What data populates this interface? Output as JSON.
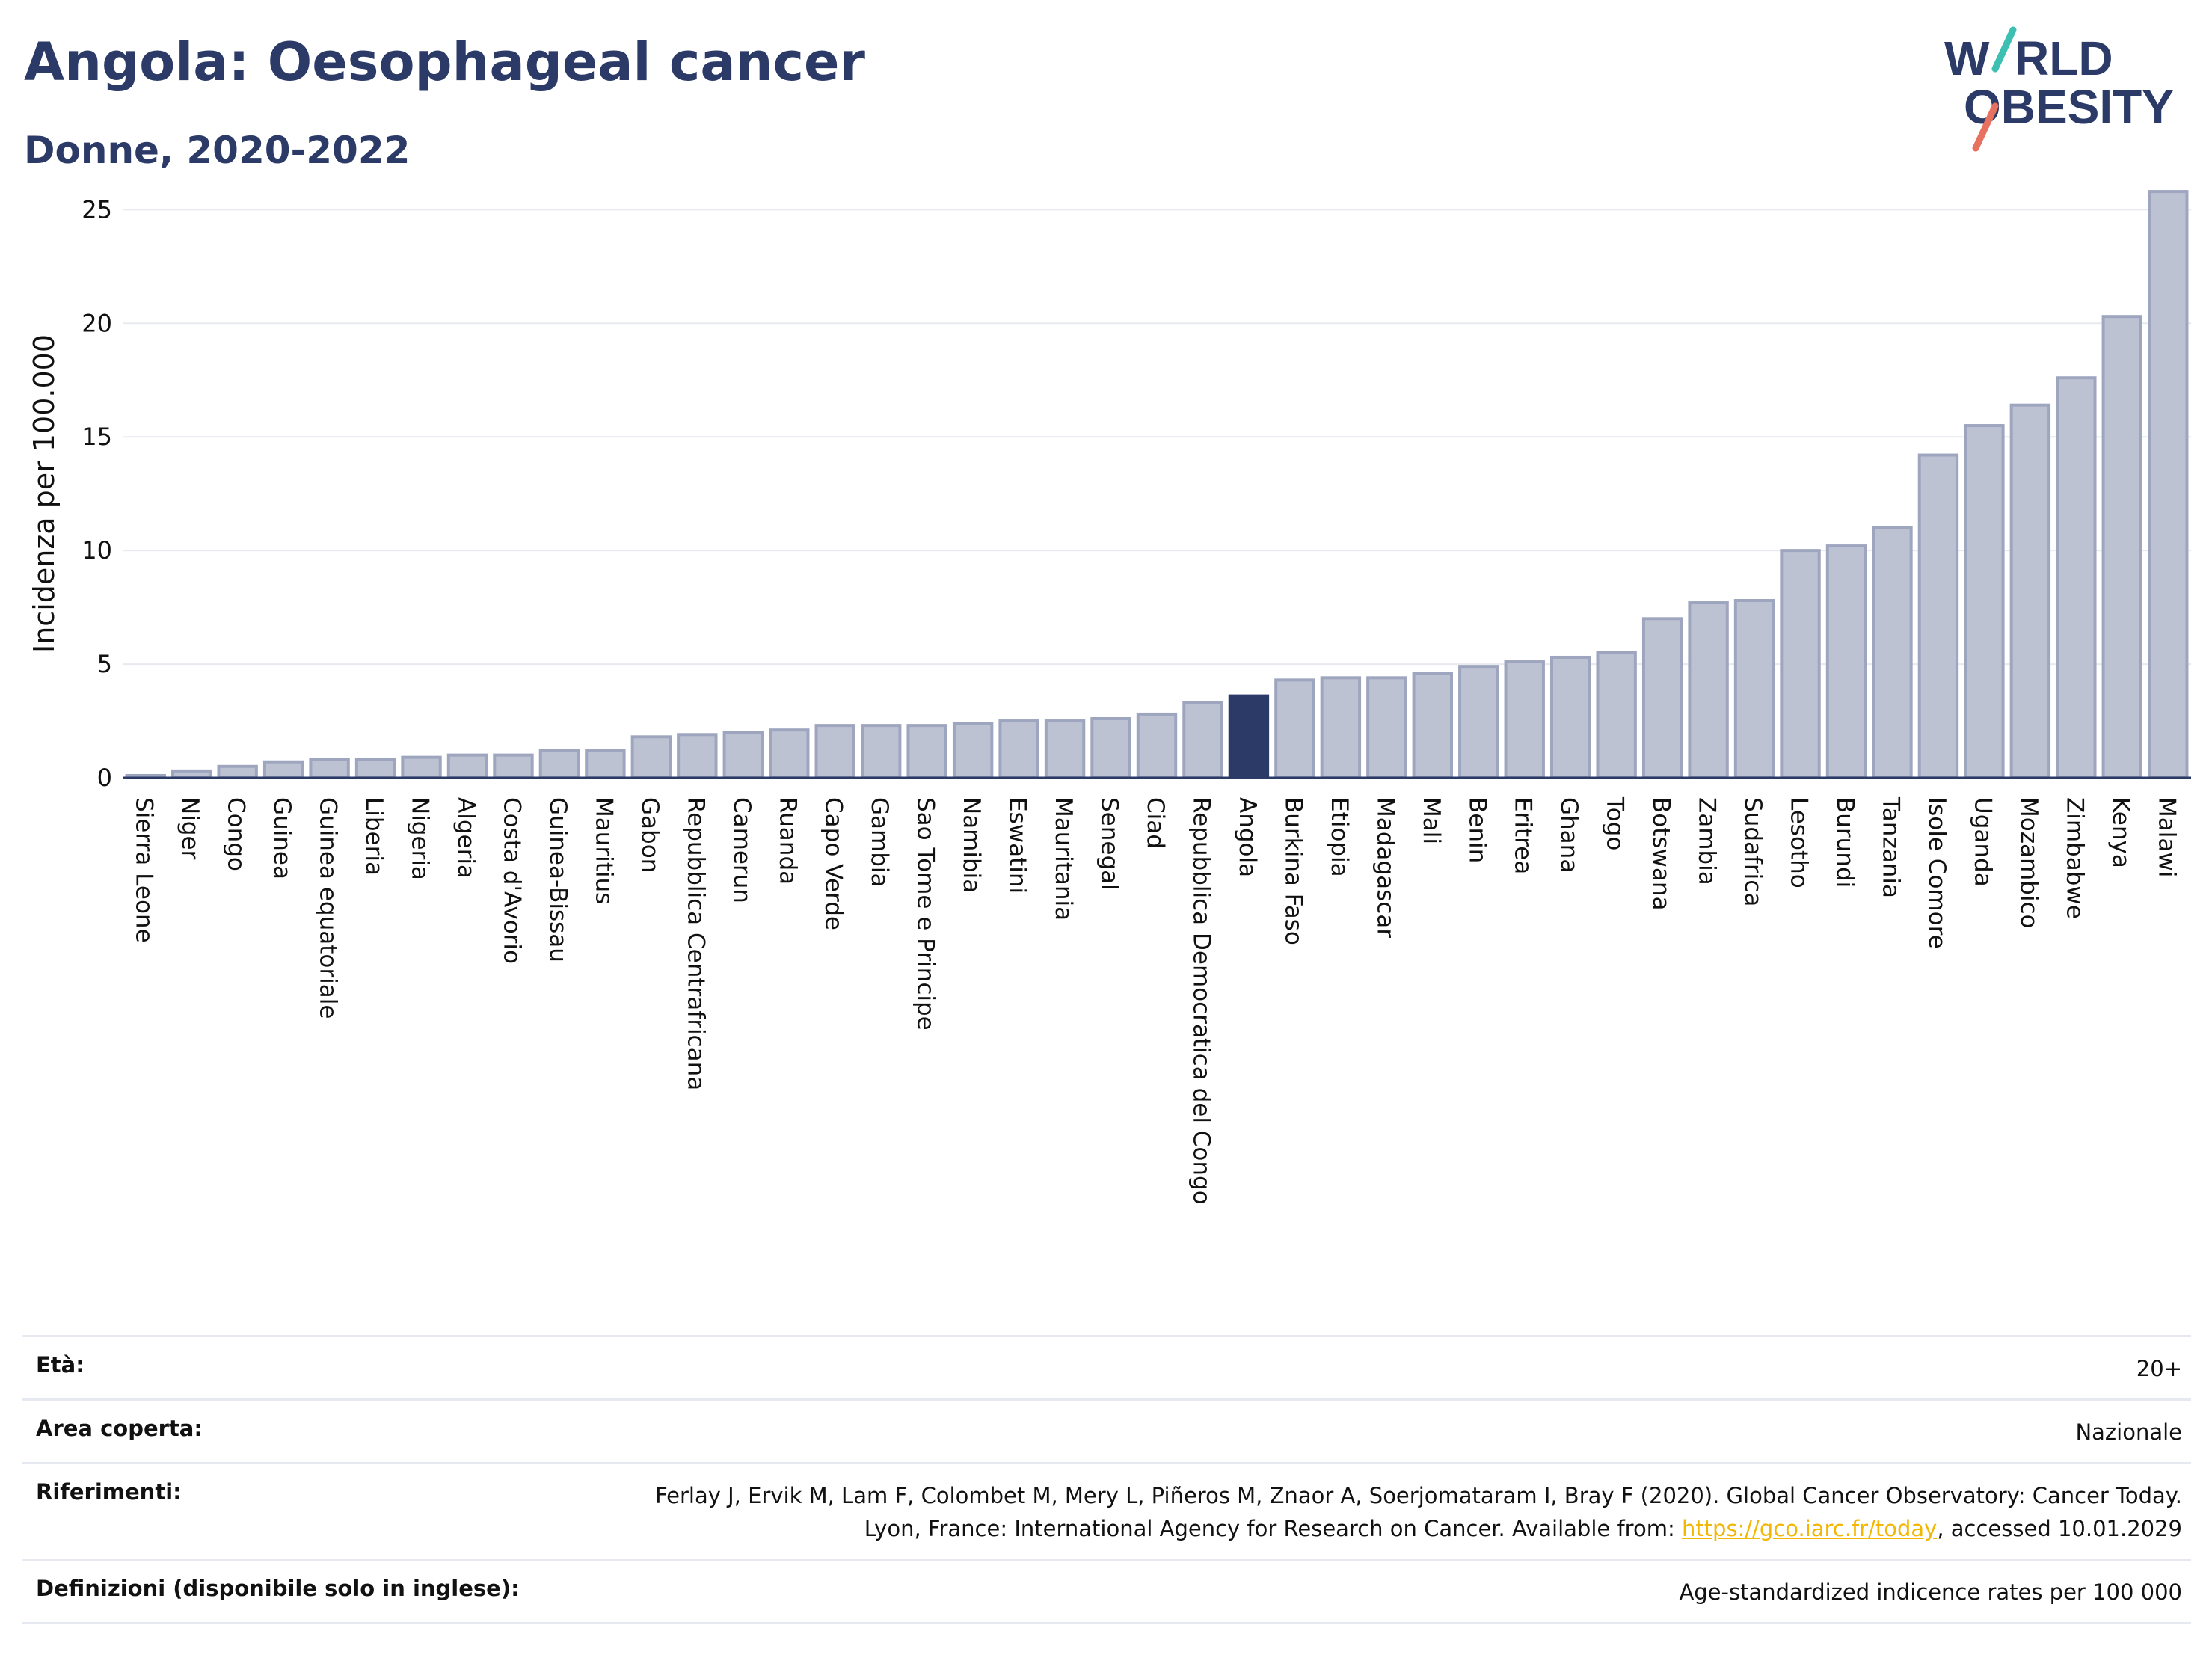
{
  "header": {
    "title": "Angola: Oesophageal cancer",
    "subtitle": "Donne, 2020-2022",
    "logo_text": [
      "W",
      "RLD",
      "OBESITY"
    ]
  },
  "colors": {
    "title": "#2b3a67",
    "bar": "#bdc2d3",
    "bar_edge": "#9ea6bf",
    "highlight": "#2b3a67",
    "logo_teal": "#3dbfb2",
    "logo_red": "#e8705e",
    "link": "#f2b705"
  },
  "chart_data": {
    "type": "bar",
    "ylabel": "Incidenza per 100.000",
    "xlabel": "",
    "ylim": [
      0,
      26
    ],
    "yticks": [
      0,
      5,
      10,
      15,
      20,
      25
    ],
    "grid": true,
    "highlight": "Angola",
    "categories": [
      "Sierra Leone",
      "Niger",
      "Congo",
      "Guinea",
      "Guinea equatoriale",
      "Liberia",
      "Nigeria",
      "Algeria",
      "Costa d'Avorio",
      "Guinea-Bissau",
      "Mauritius",
      "Gabon",
      "Repubblica Centrafricana",
      "Camerun",
      "Ruanda",
      "Capo Verde",
      "Gambia",
      "Sao Tome e Principe",
      "Namibia",
      "Eswatini",
      "Mauritania",
      "Senegal",
      "Ciad",
      "Repubblica Democratica del Congo",
      "Angola",
      "Burkina Faso",
      "Etiopia",
      "Madagascar",
      "Mali",
      "Benin",
      "Eritrea",
      "Ghana",
      "Togo",
      "Botswana",
      "Zambia",
      "Sudafrica",
      "Lesotho",
      "Burundi",
      "Tanzania",
      "Isole Comore",
      "Uganda",
      "Mozambico",
      "Zimbabwe",
      "Kenya",
      "Malawi"
    ],
    "values": [
      0.1,
      0.3,
      0.5,
      0.7,
      0.8,
      0.8,
      0.9,
      1.0,
      1.0,
      1.2,
      1.2,
      1.8,
      1.9,
      2.0,
      2.1,
      2.3,
      2.3,
      2.3,
      2.4,
      2.5,
      2.5,
      2.6,
      2.8,
      3.3,
      3.6,
      4.3,
      4.4,
      4.4,
      4.6,
      4.9,
      5.1,
      5.3,
      5.5,
      7.0,
      7.7,
      7.8,
      10.0,
      10.2,
      11.0,
      14.2,
      15.5,
      16.4,
      17.6,
      20.3,
      25.8
    ]
  },
  "meta": [
    {
      "key": "Età:",
      "value": "20+"
    },
    {
      "key": "Area coperta:",
      "value": "Nazionale"
    },
    {
      "key": "Riferimenti:",
      "value_pre": "Ferlay J, Ervik M, Lam F, Colombet M, Mery L, Piñeros M, Znaor A, Soerjomataram I, Bray F (2020). Global Cancer Observatory: Cancer Today. Lyon, France: International Agency for Research on Cancer. Available from: ",
      "link": "https://gco.iarc.fr/today",
      "value_post": ", accessed 10.01.2029"
    },
    {
      "key": "Definizioni (disponibile solo in inglese):",
      "value": "Age-standardized indicence rates per 100 000"
    }
  ]
}
